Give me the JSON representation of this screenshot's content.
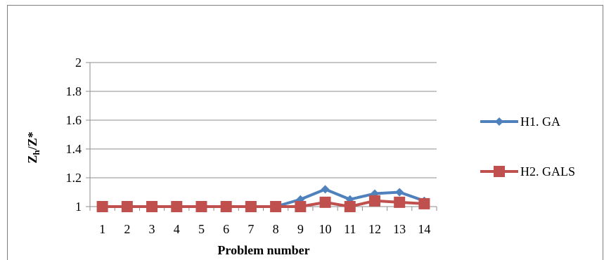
{
  "chart_data": {
    "type": "line",
    "title": "",
    "xlabel": "Problem number",
    "ylabel_main": "Z",
    "ylabel_sub": "h",
    "ylabel_tail": "/Z*",
    "categories": [
      "1",
      "2",
      "3",
      "4",
      "5",
      "6",
      "7",
      "8",
      "9",
      "10",
      "11",
      "12",
      "13",
      "14"
    ],
    "ylim": [
      1,
      2
    ],
    "yticks": [
      "1",
      "1.2",
      "1.4",
      "1.6",
      "1.8",
      "2"
    ],
    "ytick_values": [
      1,
      1.2,
      1.4,
      1.6,
      1.8,
      2
    ],
    "grid": true,
    "legend_position": "right",
    "series": [
      {
        "name": "H1. GA",
        "color": "#4f81bd",
        "marker": "diamond",
        "values": [
          1,
          1,
          1,
          1,
          1,
          1,
          1,
          1,
          1.05,
          1.12,
          1.05,
          1.09,
          1.1,
          1.04
        ]
      },
      {
        "name": "H2. GALS",
        "color": "#c0504d",
        "marker": "square",
        "values": [
          1,
          1,
          1,
          1,
          1,
          1,
          1,
          1,
          1,
          1.03,
          1,
          1.04,
          1.03,
          1.02
        ]
      }
    ]
  }
}
